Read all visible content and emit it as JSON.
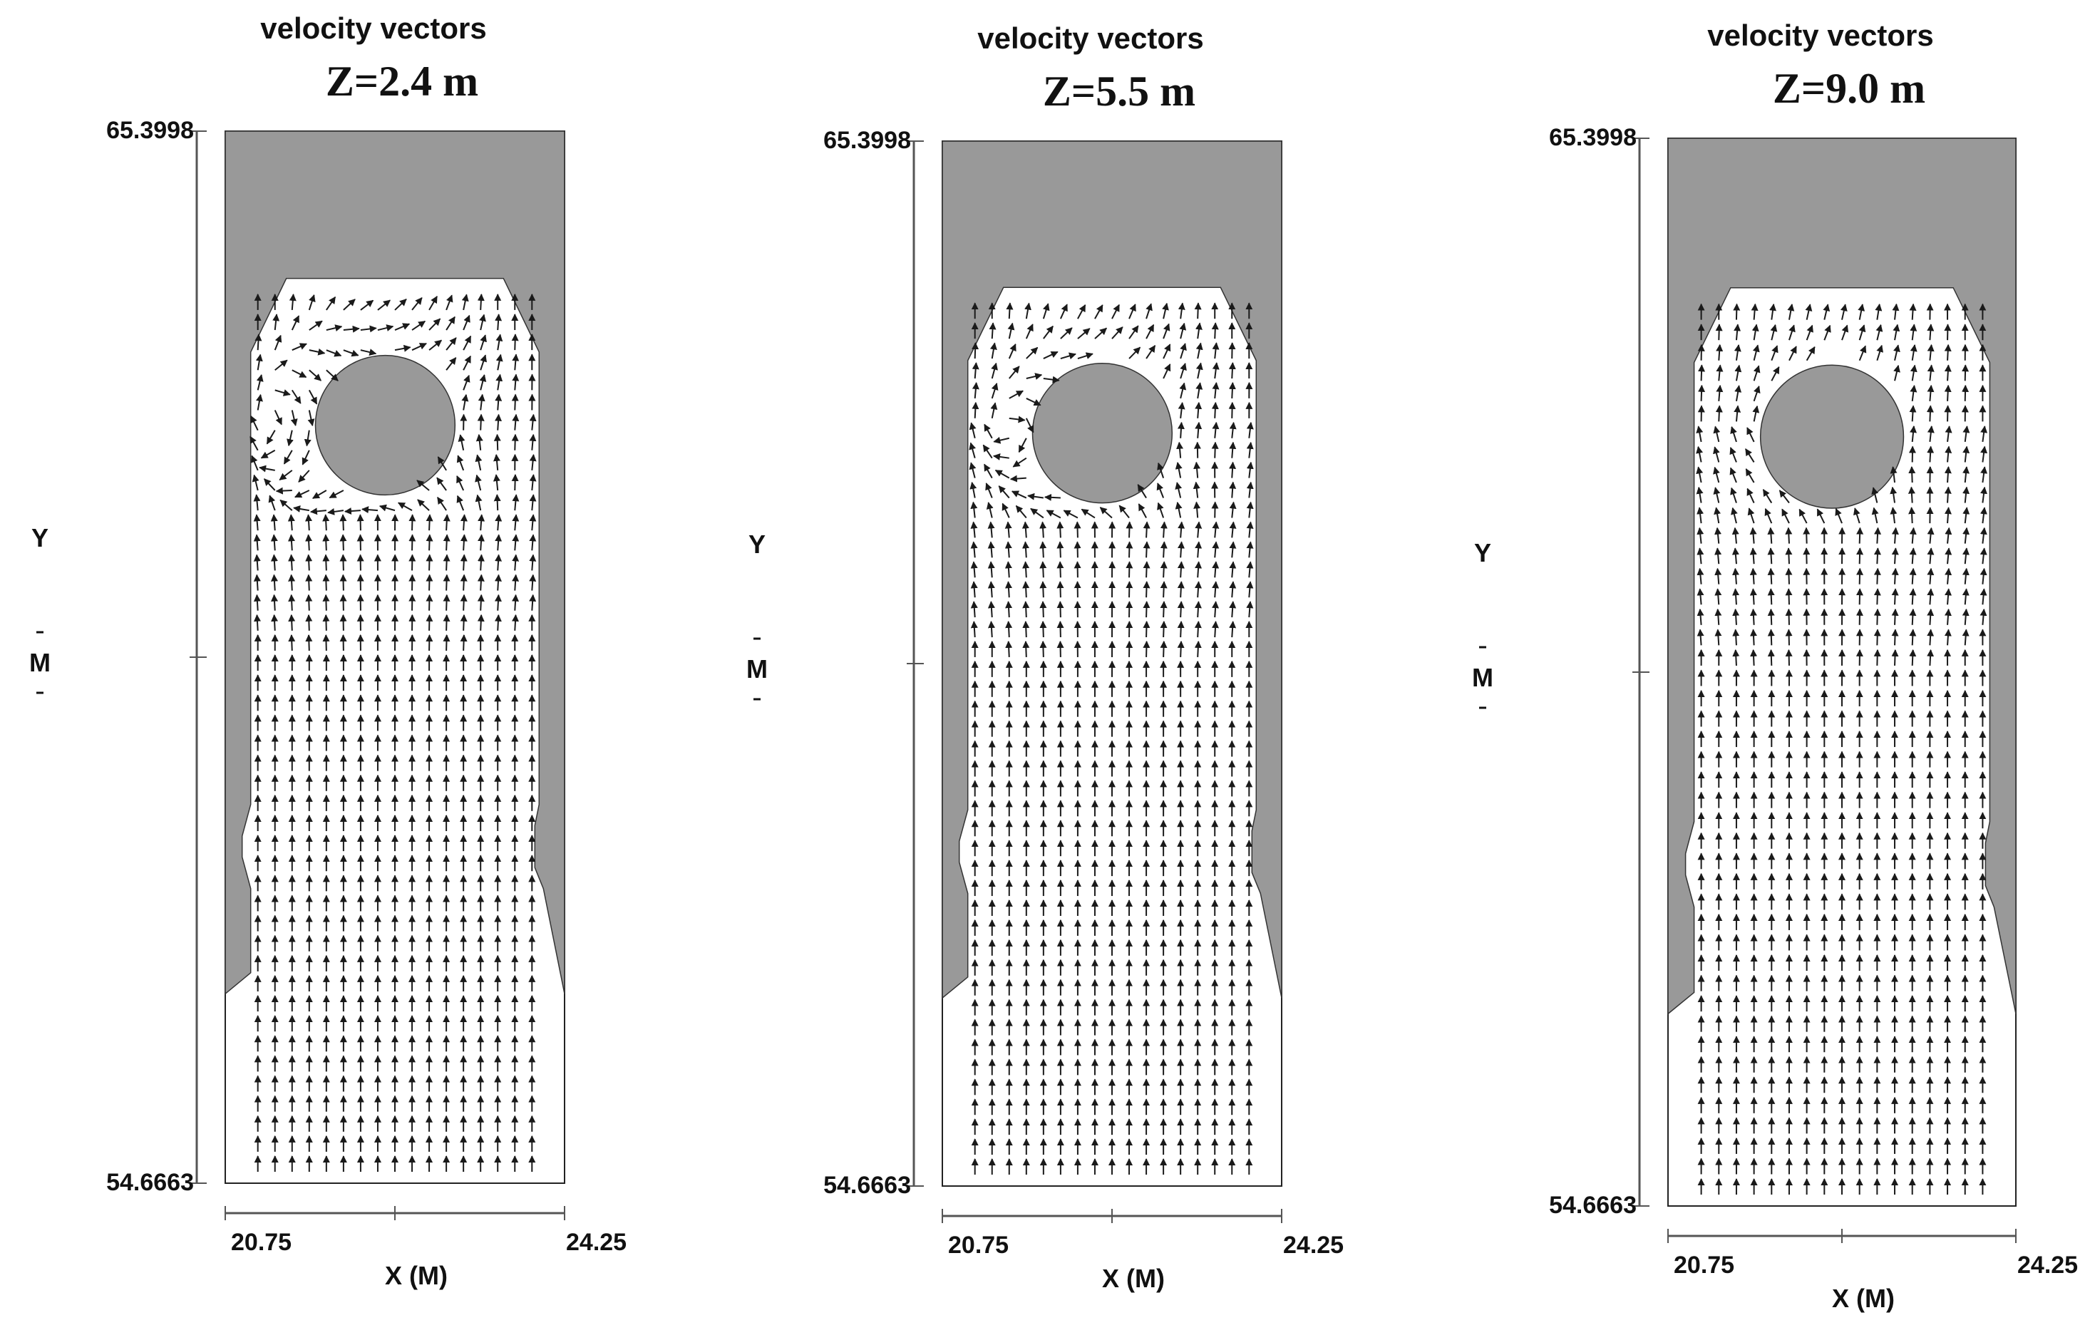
{
  "chart_data": [
    {
      "type": "vector field",
      "title": "velocity vectors",
      "subtitle": "Z=2.4 m",
      "xlabel": "X  (M)",
      "ylabel": "Y",
      "ylabel_unit": "M",
      "x_ticks": [
        "20.75",
        "24.25"
      ],
      "y_ticks": [
        "65.3998",
        "54.6663"
      ],
      "xlim": [
        20.75,
        24.25
      ],
      "ylim": [
        54.6663,
        65.3998
      ],
      "obstacle_center": [
        22.4,
        62.4
      ],
      "obstacle_radius": 0.72,
      "main_flow_direction": "+y",
      "recirculation": "strong, around top of cylinder",
      "grid": false
    },
    {
      "type": "vector field",
      "title": "velocity vectors",
      "subtitle": "Z=5.5 m",
      "xlabel": "X  (M)",
      "ylabel": "Y",
      "ylabel_unit": "M",
      "x_ticks": [
        "20.75",
        "24.25"
      ],
      "y_ticks": [
        "65.3998",
        "54.6663"
      ],
      "xlim": [
        20.75,
        24.25
      ],
      "ylim": [
        54.6663,
        65.3998
      ],
      "obstacle_center": [
        22.4,
        62.4
      ],
      "obstacle_radius": 0.72,
      "main_flow_direction": "+y",
      "recirculation": "moderate, around top of cylinder",
      "grid": false
    },
    {
      "type": "vector field",
      "title": "velocity vectors",
      "subtitle": "Z=9.0 m",
      "xlabel": "X  (M)",
      "ylabel": "Y",
      "ylabel_unit": "M",
      "x_ticks": [
        "20.75",
        "24.25"
      ],
      "y_ticks": [
        "65.3998",
        "54.6663"
      ],
      "xlim": [
        20.75,
        24.25
      ],
      "ylim": [
        54.6663,
        65.3998
      ],
      "obstacle_center": [
        22.4,
        62.4
      ],
      "obstacle_radius": 0.72,
      "main_flow_direction": "+y",
      "recirculation": "weak, flow diverted around cylinder",
      "grid": false
    }
  ],
  "colors": {
    "solid_region": "#999999",
    "arrows": "#1a1a1a",
    "axis": "#555555"
  }
}
